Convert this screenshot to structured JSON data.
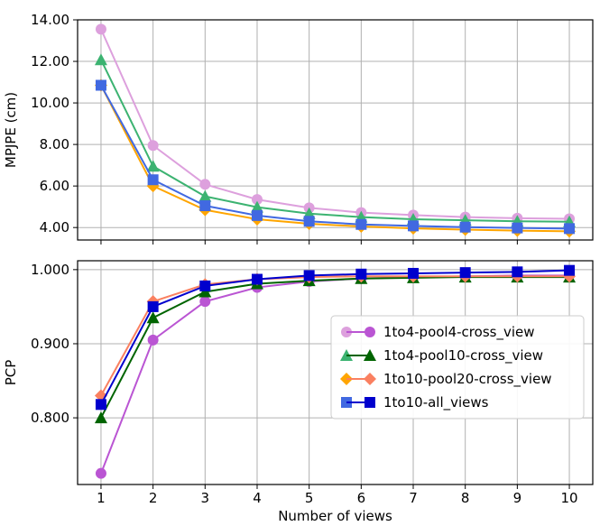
{
  "chart_data": {
    "type": "line",
    "xlabel": "Number of views",
    "x": [
      1,
      2,
      3,
      4,
      5,
      6,
      7,
      8,
      9,
      10
    ],
    "grid": true,
    "panels": [
      {
        "ylabel": "MPJPE (cm)",
        "ylim": [
          3.4,
          14.0
        ],
        "yticks": [
          4.0,
          6.0,
          8.0,
          10.0,
          12.0,
          14.0
        ],
        "ytick_labels": [
          "4.00",
          "6.00",
          "8.00",
          "10.00",
          "12.00",
          "14.00"
        ],
        "series": [
          {
            "name": "1to4-pool4-cross_view",
            "marker": "circle",
            "color": "#dda0dd",
            "values": [
              13.55,
              7.95,
              6.08,
              5.35,
              4.95,
              4.72,
              4.6,
              4.5,
              4.45,
              4.42
            ]
          },
          {
            "name": "1to4-pool10-cross_view",
            "marker": "triangle",
            "color": "#3cb371",
            "values": [
              12.08,
              6.95,
              5.5,
              4.98,
              4.67,
              4.5,
              4.4,
              4.35,
              4.3,
              4.28
            ]
          },
          {
            "name": "1to10-pool20-cross_view",
            "marker": "diamond",
            "color": "#ffa500",
            "values": [
              10.85,
              6.0,
              4.85,
              4.4,
              4.18,
              4.05,
              3.96,
              3.9,
              3.85,
              3.82
            ]
          },
          {
            "name": "1to10-all_views",
            "marker": "square",
            "color": "#4169e1",
            "values": [
              10.85,
              6.3,
              5.05,
              4.58,
              4.3,
              4.15,
              4.08,
              4.02,
              3.98,
              3.95
            ]
          }
        ]
      },
      {
        "ylabel": "PCP",
        "ylim": [
          0.71,
          1.012
        ],
        "yticks": [
          0.8,
          0.9,
          1.0
        ],
        "ytick_labels": [
          "0.800",
          "0.900",
          "1.000"
        ],
        "series": [
          {
            "name": "1to4-pool4-cross_view",
            "marker": "circle",
            "color": "#ba55d3",
            "values": [
              0.725,
              0.905,
              0.957,
              0.976,
              0.984,
              0.988,
              0.99,
              0.991,
              0.992,
              0.992
            ]
          },
          {
            "name": "1to4-pool10-cross_view",
            "marker": "triangle",
            "color": "#006400",
            "values": [
              0.8,
              0.935,
              0.97,
              0.981,
              0.985,
              0.988,
              0.989,
              0.99,
              0.99,
              0.99
            ]
          },
          {
            "name": "1to10-pool20-cross_view",
            "marker": "diamond",
            "color": "#fa8060",
            "values": [
              0.83,
              0.957,
              0.98,
              0.987,
              0.99,
              0.991,
              0.991,
              0.991,
              0.991,
              0.991
            ]
          },
          {
            "name": "1to10-all_views",
            "marker": "square",
            "color": "#0000cd",
            "values": [
              0.818,
              0.95,
              0.978,
              0.987,
              0.992,
              0.994,
              0.995,
              0.996,
              0.997,
              0.999
            ]
          }
        ]
      }
    ],
    "legend": {
      "placement": "center-right of bottom panel",
      "entries": [
        {
          "label": "1to4-pool4-cross_view",
          "marker": "circle",
          "colors": [
            "#dda0dd",
            "#ba55d3"
          ]
        },
        {
          "label": "1to4-pool10-cross_view",
          "marker": "triangle",
          "colors": [
            "#3cb371",
            "#006400"
          ]
        },
        {
          "label": "1to10-pool20-cross_view",
          "marker": "diamond",
          "colors": [
            "#ffa500",
            "#fa8060"
          ]
        },
        {
          "label": "1to10-all_views",
          "marker": "square",
          "colors": [
            "#4169e1",
            "#0000cd"
          ]
        }
      ]
    }
  }
}
